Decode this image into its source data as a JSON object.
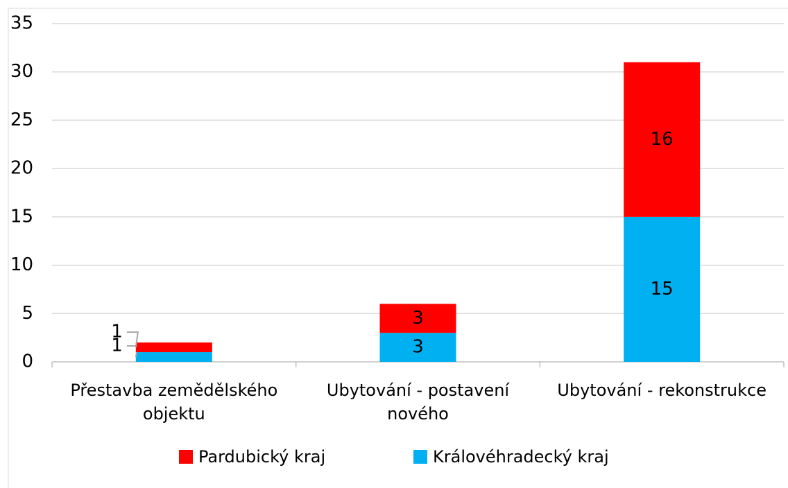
{
  "chart_data": {
    "type": "stacked_bar",
    "categories": [
      "Přestavba zemědělského objektu",
      "Ubytování - postavení nového",
      "Ubytování - rekonstrukce"
    ],
    "series": [
      {
        "name": "Pardubický kraj",
        "color": "#ff0000",
        "values": [
          1,
          3,
          16
        ]
      },
      {
        "name": "Královéhradecký kraj",
        "color": "#00b0f0",
        "values": [
          1,
          3,
          15
        ]
      }
    ],
    "ylim": [
      0,
      35
    ],
    "yticks": [
      0,
      5,
      10,
      15,
      20,
      25,
      30,
      35
    ],
    "grid": true,
    "legend": "bottom"
  }
}
